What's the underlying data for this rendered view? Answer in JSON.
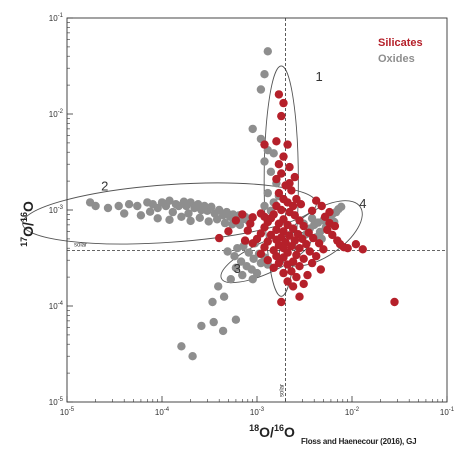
{
  "chart_data": {
    "type": "scatter",
    "log_x": true,
    "log_y": true,
    "xlim": [
      1e-05,
      0.1
    ],
    "ylim": [
      1e-05,
      0.1
    ],
    "x_ticks": [
      {
        "base": "10",
        "exp": "-5"
      },
      {
        "base": "10",
        "exp": "-4"
      },
      {
        "base": "10",
        "exp": "-3"
      },
      {
        "base": "10",
        "exp": "-2"
      },
      {
        "base": "10",
        "exp": "-1"
      }
    ],
    "y_ticks": [
      {
        "base": "10",
        "exp": "-5"
      },
      {
        "base": "10",
        "exp": "-4"
      },
      {
        "base": "10",
        "exp": "-3"
      },
      {
        "base": "10",
        "exp": "-2"
      },
      {
        "base": "10",
        "exp": "-1"
      }
    ],
    "xlabel": {
      "pre": "18",
      "main1": "O/",
      "sup2": "16",
      "main2": "O"
    },
    "ylabel": {
      "pre": "17",
      "main1": "O/",
      "sup2": "16",
      "main2": "O"
    },
    "reference": {
      "solar_x": 0.002,
      "solar_y": 0.00038,
      "label": "solar"
    },
    "grid": false,
    "legend_position": "top-right",
    "group_labels": [
      {
        "text": "1",
        "x": 0.0045,
        "y": 0.022
      },
      {
        "text": "2",
        "x": 2.5e-05,
        "y": 0.0016
      },
      {
        "text": "3",
        "x": 0.00062,
        "y": 0.00022
      },
      {
        "text": "4",
        "x": 0.013,
        "y": 0.00105
      }
    ],
    "regions": [
      {
        "name": "1",
        "cx": 0.0018,
        "cy": 0.002,
        "rx_dec": 0.18,
        "ry_dec": 1.2,
        "rot": 0
      },
      {
        "name": "2",
        "cx": 0.00012,
        "cy": 0.00092,
        "rx_dec": 1.55,
        "ry_dec": 0.3,
        "rot": -4
      },
      {
        "name": "3",
        "cx": 0.00125,
        "cy": 0.00032,
        "rx_dec": 0.52,
        "ry_dec": 0.16,
        "rot": -25
      },
      {
        "name": "4",
        "cx": 0.0047,
        "cy": 0.00057,
        "rx_dec": 0.5,
        "ry_dec": 0.24,
        "rot": -34
      }
    ],
    "series": [
      {
        "name": "Silicates",
        "color": "#b5202a",
        "points": [
          [
            0.0017,
            0.016
          ],
          [
            0.0019,
            0.013
          ],
          [
            0.0018,
            0.0095
          ],
          [
            0.0016,
            0.0052
          ],
          [
            0.0021,
            0.0048
          ],
          [
            0.0019,
            0.0036
          ],
          [
            0.0017,
            0.003
          ],
          [
            0.0022,
            0.0028
          ],
          [
            0.0018,
            0.0024
          ],
          [
            0.0016,
            0.0021
          ],
          [
            0.002,
            0.0018
          ],
          [
            0.0023,
            0.0016
          ],
          [
            0.0017,
            0.0015
          ],
          [
            0.0019,
            0.0013
          ],
          [
            0.0021,
            0.0012
          ],
          [
            0.0016,
            0.0011
          ],
          [
            0.0018,
            0.001
          ],
          [
            0.0022,
            0.00095
          ],
          [
            0.0015,
            0.0009
          ],
          [
            0.0025,
            0.00088
          ],
          [
            0.0014,
            0.00082
          ],
          [
            0.0019,
            0.0008
          ],
          [
            0.0028,
            0.00078
          ],
          [
            0.0013,
            0.00075
          ],
          [
            0.0017,
            0.00072
          ],
          [
            0.0021,
            0.0007
          ],
          [
            0.0031,
            0.00068
          ],
          [
            0.0012,
            0.00066
          ],
          [
            0.0024,
            0.00064
          ],
          [
            0.0016,
            0.00062
          ],
          [
            0.0019,
            0.0006
          ],
          [
            0.0035,
            0.00058
          ],
          [
            0.0011,
            0.00057
          ],
          [
            0.0027,
            0.00056
          ],
          [
            0.0014,
            0.00055
          ],
          [
            0.0022,
            0.00054
          ],
          [
            0.0018,
            0.00052
          ],
          [
            0.0039,
            0.00051
          ],
          [
            0.001,
            0.0005
          ],
          [
            0.003,
            0.0005
          ],
          [
            0.0016,
            0.00049
          ],
          [
            0.0025,
            0.00048
          ],
          [
            0.0013,
            0.00047
          ],
          [
            0.002,
            0.00046
          ],
          [
            0.0045,
            0.00045
          ],
          [
            0.0009,
            0.00045
          ],
          [
            0.0033,
            0.00044
          ],
          [
            0.0017,
            0.00043
          ],
          [
            0.0023,
            0.00042
          ],
          [
            0.0012,
            0.00041
          ],
          [
            0.0028,
            0.0004
          ],
          [
            0.0019,
            0.0004
          ],
          [
            0.005,
            0.00039
          ],
          [
            0.0015,
            0.00038
          ],
          [
            0.0036,
            0.00037
          ],
          [
            0.0021,
            0.00036
          ],
          [
            0.0011,
            0.00035
          ],
          [
            0.0026,
            0.00034
          ],
          [
            0.0016,
            0.00033
          ],
          [
            0.0042,
            0.00033
          ],
          [
            0.0019,
            0.00032
          ],
          [
            0.0031,
            0.00031
          ],
          [
            0.0013,
            0.0003
          ],
          [
            0.0024,
            0.00029
          ],
          [
            0.0017,
            0.00028
          ],
          [
            0.0038,
            0.00028
          ],
          [
            0.0021,
            0.00027
          ],
          [
            0.0028,
            0.00026
          ],
          [
            0.0015,
            0.00025
          ],
          [
            0.0047,
            0.00024
          ],
          [
            0.0023,
            0.00023
          ],
          [
            0.0019,
            0.00022
          ],
          [
            0.0034,
            0.00021
          ],
          [
            0.0026,
            0.0002
          ],
          [
            0.0021,
            0.00018
          ],
          [
            0.0031,
            0.00017
          ],
          [
            0.0024,
            0.00016
          ],
          [
            0.0028,
            0.000125
          ],
          [
            0.0018,
            0.00011
          ],
          [
            0.0055,
            0.00062
          ],
          [
            0.0062,
            0.00055
          ],
          [
            0.007,
            0.00048
          ],
          [
            0.0058,
            0.00073
          ],
          [
            0.0066,
            0.00068
          ],
          [
            0.0075,
            0.00044
          ],
          [
            0.0082,
            0.00041
          ],
          [
            0.009,
            0.0004
          ],
          [
            0.011,
            0.00044
          ],
          [
            0.013,
            0.00039
          ],
          [
            0.0052,
            0.00085
          ],
          [
            0.0048,
            0.0011
          ],
          [
            0.0058,
            0.00095
          ],
          [
            0.0042,
            0.00125
          ],
          [
            0.0038,
            0.00098
          ],
          [
            0.0005,
            0.0006
          ],
          [
            0.0006,
            0.00078
          ],
          [
            0.0007,
            0.0009
          ],
          [
            0.0008,
            0.00061
          ],
          [
            0.0004,
            0.00051
          ],
          [
            0.00085,
            0.00072
          ],
          [
            0.0009,
            0.00084
          ],
          [
            0.00075,
            0.00048
          ],
          [
            0.0011,
            0.00092
          ],
          [
            0.0012,
            0.00085
          ],
          [
            0.0024,
            0.0011
          ],
          [
            0.0026,
            0.0013
          ],
          [
            0.0029,
            0.00115
          ],
          [
            0.0022,
            0.0019
          ],
          [
            0.0025,
            0.0022
          ],
          [
            0.028,
            0.00011
          ],
          [
            0.0012,
            0.0048
          ]
        ]
      },
      {
        "name": "Oxides",
        "color": "#8e8e8e",
        "points": [
          [
            0.0013,
            0.045
          ],
          [
            0.0012,
            0.026
          ],
          [
            0.0011,
            0.018
          ],
          [
            0.0009,
            0.007
          ],
          [
            0.0011,
            0.0055
          ],
          [
            0.0013,
            0.0042
          ],
          [
            0.0015,
            0.0039
          ],
          [
            0.0012,
            0.0032
          ],
          [
            0.0014,
            0.0025
          ],
          [
            0.0016,
            0.0019
          ],
          [
            0.0013,
            0.0015
          ],
          [
            0.0017,
            0.0014
          ],
          [
            0.0015,
            0.0012
          ],
          [
            0.0012,
            0.0011
          ],
          [
            0.0014,
            0.00098
          ],
          [
            1.75e-05,
            0.0012
          ],
          [
            2e-05,
            0.0011
          ],
          [
            2.7e-05,
            0.00105
          ],
          [
            3.5e-05,
            0.0011
          ],
          [
            4.5e-05,
            0.00115
          ],
          [
            5.5e-05,
            0.0011
          ],
          [
            7e-05,
            0.0012
          ],
          [
            8e-05,
            0.00115
          ],
          [
            9e-05,
            0.00105
          ],
          [
            0.0001,
            0.0012
          ],
          [
            0.00011,
            0.0011
          ],
          [
            0.00012,
            0.00125
          ],
          [
            0.00014,
            0.00115
          ],
          [
            0.00015,
            0.0011
          ],
          [
            0.00017,
            0.00122
          ],
          [
            0.00018,
            0.0011
          ],
          [
            0.0002,
            0.0012
          ],
          [
            0.00022,
            0.00105
          ],
          [
            0.00024,
            0.00115
          ],
          [
            0.00026,
            0.001
          ],
          [
            0.00028,
            0.0011
          ],
          [
            0.0003,
            0.00098
          ],
          [
            0.00033,
            0.00108
          ],
          [
            0.00036,
            0.00092
          ],
          [
            0.0004,
            0.001
          ],
          [
            0.00044,
            0.00088
          ],
          [
            0.00048,
            0.00095
          ],
          [
            0.00052,
            0.00085
          ],
          [
            0.00056,
            0.0009
          ],
          [
            0.0006,
            0.00082
          ],
          [
            0.00065,
            0.00088
          ],
          [
            0.0007,
            0.0008
          ],
          [
            0.00075,
            0.00085
          ],
          [
            0.0008,
            0.00078
          ],
          [
            0.00086,
            0.00082
          ],
          [
            4e-05,
            0.00092
          ],
          [
            6e-05,
            0.00088
          ],
          [
            9e-05,
            0.00082
          ],
          [
            0.00012,
            0.00079
          ],
          [
            0.00016,
            0.00085
          ],
          [
            0.0002,
            0.00077
          ],
          [
            0.00025,
            0.00083
          ],
          [
            0.00031,
            0.00076
          ],
          [
            0.00038,
            0.0008
          ],
          [
            0.00046,
            0.00073
          ],
          [
            0.00055,
            0.00071
          ],
          [
            0.00066,
            0.0007
          ],
          [
            0.00019,
            0.00092
          ],
          [
            0.00013,
            0.00095
          ],
          [
            7.5e-05,
            0.00096
          ],
          [
            0.00049,
            0.00037
          ],
          [
            0.00058,
            0.00033
          ],
          [
            0.00068,
            0.00029
          ],
          [
            0.00078,
            0.00026
          ],
          [
            0.00088,
            0.00024
          ],
          [
            0.001,
            0.00022
          ],
          [
            0.00072,
            0.00042
          ],
          [
            0.00082,
            0.00036
          ],
          [
            0.00092,
            0.00031
          ],
          [
            0.0011,
            0.00028
          ],
          [
            0.00062,
            0.0004
          ],
          [
            0.00075,
            0.00047
          ],
          [
            0.00105,
            0.00035
          ],
          [
            0.0012,
            0.00032
          ],
          [
            0.00095,
            0.00045
          ],
          [
            0.0006,
            0.00025
          ],
          [
            0.0007,
            0.00021
          ],
          [
            0.0013,
            0.00027
          ],
          [
            0.0009,
            0.00019
          ],
          [
            0.0033,
            0.00056
          ],
          [
            0.0036,
            0.00064
          ],
          [
            0.004,
            0.0007
          ],
          [
            0.0044,
            0.00074
          ],
          [
            0.005,
            0.00078
          ],
          [
            0.0056,
            0.00085
          ],
          [
            0.0062,
            0.0009
          ],
          [
            0.0068,
            0.00095
          ],
          [
            0.0072,
            0.00102
          ],
          [
            0.0077,
            0.00108
          ],
          [
            0.0046,
            0.00059
          ],
          [
            0.0053,
            0.00066
          ],
          [
            0.0059,
            0.00071
          ],
          [
            0.0031,
            0.00072
          ],
          [
            0.0038,
            0.00082
          ],
          [
            0.0065,
            0.00075
          ],
          [
            0.0042,
            0.00052
          ],
          [
            0.0048,
            0.0005
          ],
          [
            0.00016,
            3.8e-05
          ],
          [
            0.00021,
            3e-05
          ],
          [
            0.00026,
            6.2e-05
          ],
          [
            0.00035,
            6.8e-05
          ],
          [
            0.00044,
            5.5e-05
          ],
          [
            0.0006,
            7.2e-05
          ],
          [
            0.00039,
            0.00016
          ],
          [
            0.00045,
            0.000125
          ],
          [
            0.00053,
            0.00019
          ],
          [
            0.00034,
            0.00011
          ]
        ]
      }
    ]
  },
  "legend": [
    {
      "label": "Silicates",
      "color": "#b5202a"
    },
    {
      "label": "Oxides",
      "color": "#8e8e8e"
    }
  ],
  "credit": "Floss and Haenecour (2016), GJ"
}
